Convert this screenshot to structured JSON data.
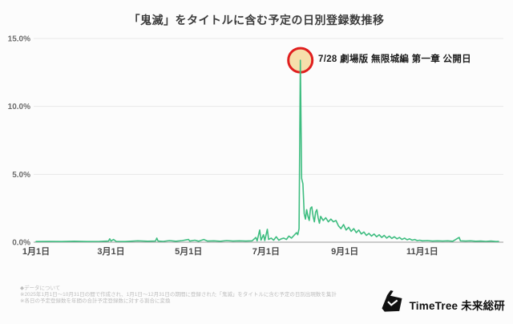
{
  "title": "「鬼滅」をタイトルに含む予定の日別登録数推移",
  "annotation": {
    "label": "7/28 劇場版 無限城編 第一章 公開日",
    "day": 208,
    "value": 13.4,
    "circle_fill": "#f6dfab",
    "circle_stroke": "#e01f1f"
  },
  "chart_data": {
    "type": "line",
    "title": "「鬼滅」をタイトルに含む予定の日別登録数推移",
    "xlabel": "",
    "ylabel": "",
    "ylim": [
      0,
      15
    ],
    "x_unit": "day_of_year_2025",
    "grid": "horizontal",
    "line_color": "#3ebd80",
    "axis_color": "#9a9a9a",
    "grid_color": "#e8e8e8",
    "y_ticks": [
      {
        "value": 0,
        "label": "0.0%"
      },
      {
        "value": 5,
        "label": "5.0%"
      },
      {
        "value": 10,
        "label": "10.0%"
      },
      {
        "value": 15,
        "label": "15.0%"
      }
    ],
    "x_ticks": [
      {
        "day": 0,
        "label": "1月1日"
      },
      {
        "day": 59,
        "label": "3月1日"
      },
      {
        "day": 120,
        "label": "5月1日"
      },
      {
        "day": 181,
        "label": "7月1日"
      },
      {
        "day": 243,
        "label": "9月1日"
      },
      {
        "day": 304,
        "label": "11月1日"
      }
    ],
    "points": [
      [
        0,
        0.05
      ],
      [
        10,
        0.06
      ],
      [
        20,
        0.05
      ],
      [
        30,
        0.07
      ],
      [
        40,
        0.05
      ],
      [
        50,
        0.06
      ],
      [
        57,
        0.08
      ],
      [
        58,
        0.25
      ],
      [
        59,
        0.08
      ],
      [
        61,
        0.2
      ],
      [
        63,
        0.06
      ],
      [
        70,
        0.05
      ],
      [
        80,
        0.1
      ],
      [
        88,
        0.07
      ],
      [
        94,
        0.08
      ],
      [
        95,
        0.3
      ],
      [
        96,
        0.08
      ],
      [
        100,
        0.06
      ],
      [
        105,
        0.12
      ],
      [
        110,
        0.07
      ],
      [
        115,
        0.12
      ],
      [
        120,
        0.2
      ],
      [
        121,
        0.08
      ],
      [
        125,
        0.15
      ],
      [
        128,
        0.07
      ],
      [
        132,
        0.2
      ],
      [
        135,
        0.08
      ],
      [
        140,
        0.1
      ],
      [
        145,
        0.07
      ],
      [
        150,
        0.12
      ],
      [
        155,
        0.08
      ],
      [
        160,
        0.1
      ],
      [
        165,
        0.08
      ],
      [
        170,
        0.1
      ],
      [
        173,
        0.35
      ],
      [
        174,
        0.1
      ],
      [
        176,
        0.9
      ],
      [
        177,
        0.15
      ],
      [
        179,
        0.55
      ],
      [
        180,
        0.12
      ],
      [
        182,
        0.95
      ],
      [
        183,
        0.2
      ],
      [
        185,
        0.3
      ],
      [
        187,
        0.15
      ],
      [
        189,
        0.4
      ],
      [
        191,
        0.15
      ],
      [
        193,
        0.25
      ],
      [
        195,
        0.3
      ],
      [
        197,
        0.2
      ],
      [
        199,
        0.45
      ],
      [
        201,
        0.3
      ],
      [
        203,
        0.5
      ],
      [
        205,
        0.7
      ],
      [
        206,
        0.55
      ],
      [
        207,
        1.0
      ],
      [
        208,
        13.4
      ],
      [
        209,
        4.7
      ],
      [
        210,
        4.3
      ],
      [
        211,
        2.1
      ],
      [
        212,
        1.7
      ],
      [
        213,
        2.4
      ],
      [
        214,
        1.9
      ],
      [
        215,
        1.6
      ],
      [
        216,
        2.5
      ],
      [
        217,
        2.6
      ],
      [
        218,
        1.9
      ],
      [
        219,
        1.5
      ],
      [
        220,
        2.2
      ],
      [
        221,
        2.4
      ],
      [
        222,
        1.8
      ],
      [
        223,
        1.4
      ],
      [
        224,
        1.9
      ],
      [
        226,
        1.6
      ],
      [
        228,
        1.8
      ],
      [
        230,
        1.5
      ],
      [
        232,
        1.7
      ],
      [
        234,
        1.5
      ],
      [
        236,
        1.6
      ],
      [
        238,
        1.2
      ],
      [
        240,
        1.0
      ],
      [
        242,
        1.3
      ],
      [
        244,
        0.9
      ],
      [
        246,
        1.1
      ],
      [
        248,
        0.8
      ],
      [
        250,
        1.0
      ],
      [
        252,
        0.7
      ],
      [
        254,
        0.9
      ],
      [
        256,
        0.6
      ],
      [
        258,
        0.75
      ],
      [
        260,
        0.5
      ],
      [
        262,
        0.65
      ],
      [
        264,
        0.45
      ],
      [
        266,
        0.6
      ],
      [
        268,
        0.4
      ],
      [
        270,
        0.55
      ],
      [
        272,
        0.35
      ],
      [
        274,
        0.5
      ],
      [
        276,
        0.3
      ],
      [
        278,
        0.45
      ],
      [
        280,
        0.28
      ],
      [
        282,
        0.4
      ],
      [
        284,
        0.25
      ],
      [
        286,
        0.35
      ],
      [
        288,
        0.2
      ],
      [
        290,
        0.3
      ],
      [
        292,
        0.18
      ],
      [
        294,
        0.25
      ],
      [
        296,
        0.15
      ],
      [
        298,
        0.2
      ],
      [
        300,
        0.12
      ],
      [
        302,
        0.15
      ],
      [
        304,
        0.1
      ],
      [
        308,
        0.12
      ],
      [
        312,
        0.08
      ],
      [
        316,
        0.1
      ],
      [
        320,
        0.08
      ],
      [
        324,
        0.1
      ],
      [
        328,
        0.07
      ],
      [
        332,
        0.3
      ],
      [
        333,
        0.35
      ],
      [
        334,
        0.1
      ],
      [
        338,
        0.08
      ],
      [
        342,
        0.1
      ],
      [
        346,
        0.07
      ],
      [
        350,
        0.08
      ],
      [
        354,
        0.06
      ],
      [
        358,
        0.08
      ],
      [
        362,
        0.05
      ],
      [
        364,
        0.06
      ]
    ]
  },
  "footnotes": [
    "◆データについて",
    "※2025年1月1日〜10月31日の間で作成され、1月1日〜12月31日の期間に登録された「鬼滅」をタイトルに含む予定の日別出現数を集計",
    "※各日の予定登録数を年間の合計予定登録数に対する割合に変換"
  ],
  "logo": {
    "text": "TimeTree 未来総研"
  }
}
